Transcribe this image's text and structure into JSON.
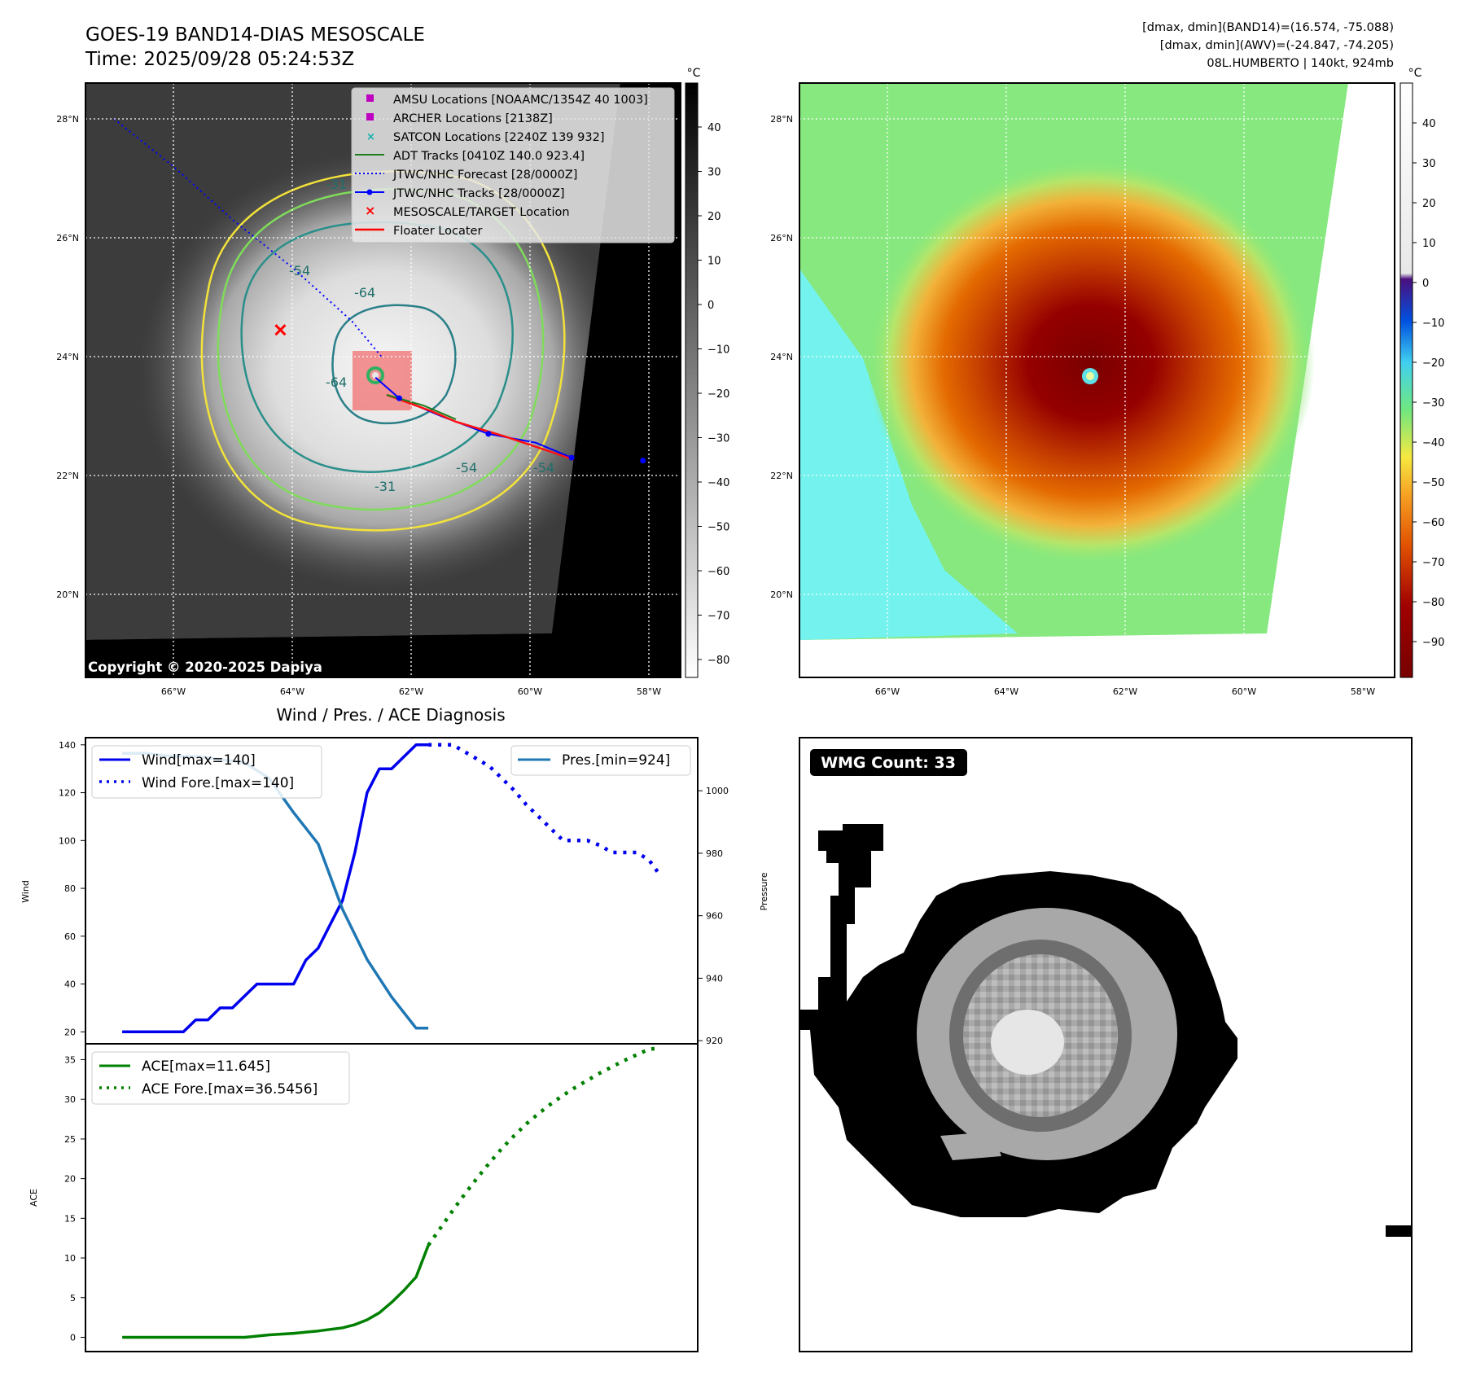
{
  "header": {
    "title_line1": "GOES-19 BAND14-DIAS MESOSCALE",
    "title_line2": "Time: 2025/09/28 05:24:53Z",
    "info_line1": "[dmax, dmin](BAND14)=(16.574, -75.088)",
    "info_line2": "[dmax, dmin](AWV)=(-24.847, -74.205)",
    "info_line3": "08L.HUMBERTO | 140kt, 924mb",
    "copyright": "Copyright © 2020-2025 Dapiya"
  },
  "map": {
    "lat_labels": [
      "28°N",
      "26°N",
      "24°N",
      "22°N",
      "20°N"
    ],
    "lon_labels": [
      "66°W",
      "64°W",
      "62°W",
      "60°W",
      "58°W"
    ],
    "contour_labels": [
      "-31",
      "-54",
      "-64",
      "-64",
      "-54",
      "-31",
      "-54"
    ],
    "legend": [
      {
        "label": "AMSU Locations [NOAAMC/1354Z 40 1003]",
        "color": "#c000c0",
        "marker": "square"
      },
      {
        "label": "ARCHER Locations [2138Z]",
        "color": "#c000c0",
        "marker": "square"
      },
      {
        "label": "SATCON Locations [2240Z 139 932]",
        "color": "#10b0b0",
        "marker": "x"
      },
      {
        "label": "ADT Tracks [0410Z 140.0 923.4]",
        "color": "#1e7d1e",
        "marker": "line"
      },
      {
        "label": "JTWC/NHC Forecast [28/0000Z]",
        "color": "#0000ff",
        "marker": "dotted"
      },
      {
        "label": "JTWC/NHC Tracks [28/0000Z]",
        "color": "#0000ff",
        "marker": "line-dot"
      },
      {
        "label": "MESOSCALE/TARGET Location",
        "color": "#ff0000",
        "marker": "x"
      },
      {
        "label": "Floater Locater",
        "color": "#ff0000",
        "marker": "line"
      }
    ],
    "forecast_track": [
      [
        -67.0,
        28.0
      ],
      [
        -66.0,
        27.2
      ],
      [
        -65.0,
        26.3
      ],
      [
        -64.0,
        25.5
      ],
      [
        -63.0,
        24.6
      ],
      [
        -62.5,
        24.0
      ]
    ],
    "past_track": [
      [
        -62.6,
        23.65
      ],
      [
        -62.2,
        23.3
      ],
      [
        -61.5,
        23.0
      ],
      [
        -60.7,
        22.7
      ],
      [
        -59.9,
        22.55
      ],
      [
        -59.3,
        22.3
      ],
      [
        -58.6,
        22.1
      ],
      [
        -58.1,
        22.25
      ],
      [
        -57.5,
        22.3
      ]
    ],
    "target_location": [
      -64.2,
      24.45
    ]
  },
  "colorbar_gray": {
    "unit": "°C",
    "ticks": [
      "40",
      "30",
      "20",
      "10",
      "0",
      "−10",
      "−20",
      "−30",
      "−40",
      "−50",
      "−60",
      "−70",
      "−80"
    ]
  },
  "colorbar_color": {
    "unit": "°C",
    "ticks": [
      "40",
      "30",
      "20",
      "10",
      "0",
      "−10",
      "−20",
      "−30",
      "−40",
      "−50",
      "−60",
      "−70",
      "−80",
      "−90"
    ]
  },
  "diag": {
    "title": "Wind / Pres. / ACE Diagnosis",
    "wind_ylabel": "Wind",
    "pres_ylabel": "Pressure",
    "ace_ylabel": "ACE",
    "wind_ticks": [
      "20",
      "40",
      "60",
      "80",
      "100",
      "120",
      "140"
    ],
    "pres_ticks": [
      "920",
      "940",
      "960",
      "980",
      "1000"
    ],
    "ace_ticks": [
      "0",
      "5",
      "10",
      "15",
      "20",
      "25",
      "30",
      "35"
    ],
    "legend_wind": "Wind[max=140]",
    "legend_wind_fore": "Wind Fore.[max=140]",
    "legend_pres": "Pres.[min=924]",
    "legend_ace": "ACE[max=11.645]",
    "legend_ace_fore": "ACE Fore.[max=36.5456]",
    "wmg_label": "WMG Count: 33"
  },
  "chart_data": [
    {
      "type": "line",
      "title": "Wind / Pres. / ACE Diagnosis",
      "ylabel": "Wind",
      "ylim": [
        15,
        143
      ],
      "y2label": "Pressure",
      "y2lim": [
        919,
        1017
      ],
      "series": [
        {
          "name": "Wind[max=140]",
          "color": "#0000ee",
          "style": "solid",
          "axis": "left",
          "x": [
            0,
            1,
            2,
            3,
            4,
            5,
            6,
            7,
            8,
            9,
            10,
            11,
            12,
            13,
            14,
            15,
            16,
            17,
            18,
            19,
            20,
            21,
            22,
            23,
            24,
            25
          ],
          "values": [
            20,
            20,
            20,
            20,
            20,
            20,
            25,
            25,
            30,
            30,
            35,
            40,
            40,
            40,
            40,
            50,
            55,
            65,
            75,
            95,
            120,
            130,
            130,
            135,
            140,
            140
          ]
        },
        {
          "name": "Wind Fore.[max=140]",
          "color": "#0000ee",
          "style": "dotted",
          "axis": "left",
          "x": [
            25,
            26,
            27,
            28,
            29,
            30,
            31,
            32,
            33,
            34,
            35,
            36,
            37,
            38,
            39,
            40,
            41,
            42,
            43,
            44
          ],
          "values": [
            140,
            140,
            140,
            137,
            134,
            131,
            126,
            121,
            115,
            110,
            105,
            100,
            100,
            100,
            98,
            95,
            95,
            95,
            92,
            85
          ]
        },
        {
          "name": "Pres.[min=924]",
          "color": "#1f77b4",
          "style": "solid",
          "axis": "right",
          "x": [
            0,
            2,
            4,
            6,
            8,
            10,
            12,
            14,
            16,
            18,
            20,
            22,
            24,
            25
          ],
          "values": [
            1012,
            1012,
            1011,
            1011,
            1010,
            1009,
            1004,
            993,
            983,
            962,
            946,
            934,
            924,
            924
          ]
        }
      ]
    },
    {
      "type": "line",
      "ylabel": "ACE",
      "ylim": [
        -1.8,
        37
      ],
      "series": [
        {
          "name": "ACE[max=11.645]",
          "color": "#008000",
          "style": "solid",
          "x": [
            0,
            4,
            6,
            8,
            10,
            12,
            14,
            16,
            18,
            19,
            20,
            21,
            22,
            23,
            24,
            25
          ],
          "values": [
            0,
            0,
            0,
            0,
            0,
            0.3,
            0.5,
            0.8,
            1.2,
            1.6,
            2.2,
            3.1,
            4.4,
            5.9,
            7.6,
            11.6
          ]
        },
        {
          "name": "ACE Fore.[max=36.5456]",
          "color": "#008000",
          "style": "dotted",
          "x": [
            25,
            26,
            27,
            28,
            29,
            30,
            31,
            32,
            33,
            34,
            35,
            36,
            37,
            38,
            39,
            40,
            41,
            42,
            43,
            44
          ],
          "values": [
            11.6,
            13.8,
            16.0,
            18.1,
            20.1,
            22.0,
            23.8,
            25.4,
            26.9,
            28.2,
            29.4,
            30.5,
            31.5,
            32.4,
            33.3,
            34.1,
            34.9,
            35.6,
            36.3,
            36.5
          ]
        }
      ]
    }
  ]
}
